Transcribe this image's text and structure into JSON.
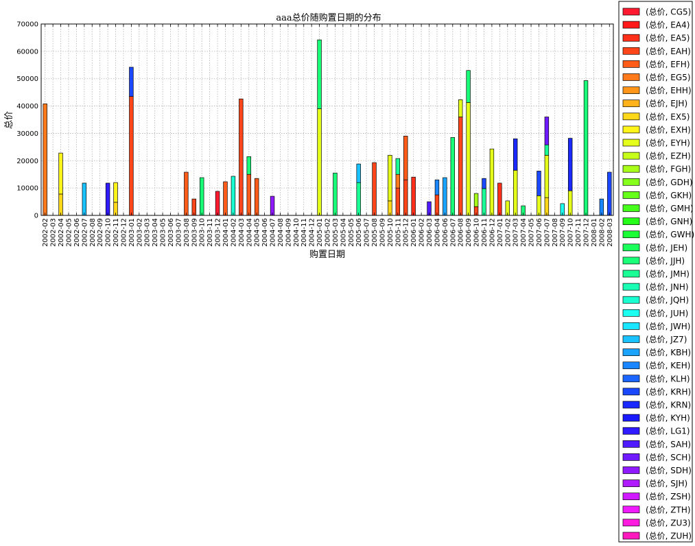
{
  "chart_data": {
    "type": "bar",
    "stacked": true,
    "title": "aaa总价随购置日期的分布",
    "xlabel": "购置日期",
    "ylabel": "总价",
    "ylim": [
      0,
      70000
    ],
    "yticks": [
      0,
      10000,
      20000,
      30000,
      40000,
      50000,
      60000,
      70000
    ],
    "grid": true,
    "legend_position": "right",
    "categories": [
      "2002-02",
      "2002-03",
      "2002-04",
      "2002-05",
      "2002-06",
      "2002-07",
      "2002-08",
      "2002-09",
      "2002-10",
      "2002-11",
      "2002-12",
      "2003-01",
      "2003-02",
      "2003-03",
      "2003-04",
      "2003-05",
      "2003-06",
      "2003-07",
      "2003-08",
      "2003-09",
      "2003-10",
      "2003-11",
      "2003-12",
      "2004-01",
      "2004-02",
      "2004-03",
      "2004-04",
      "2004-05",
      "2004-06",
      "2004-07",
      "2004-08",
      "2004-09",
      "2004-10",
      "2004-11",
      "2004-12",
      "2005-01",
      "2005-02",
      "2005-03",
      "2005-04",
      "2005-05",
      "2005-06",
      "2005-07",
      "2005-08",
      "2005-09",
      "2005-10",
      "2005-11",
      "2005-12",
      "2006-01",
      "2006-02",
      "2006-03",
      "2006-04",
      "2006-06",
      "2006-07",
      "2006-08",
      "2006-09",
      "2006-10",
      "2006-11",
      "2006-12",
      "2007-01",
      "2007-02",
      "2007-03",
      "2007-04",
      "2007-05",
      "2007-06",
      "2007-07",
      "2007-08",
      "2007-09",
      "2007-10",
      "2007-11",
      "2007-12",
      "2008-01",
      "2008-02",
      "2008-03"
    ],
    "legend": [
      {
        "label": "(总价, CG5)",
        "color": "#ff1a30"
      },
      {
        "label": "(总价, EA4)",
        "color": "#ff1a1a"
      },
      {
        "label": "(总价, EA5)",
        "color": "#ff2f1a"
      },
      {
        "label": "(总价, EAH)",
        "color": "#ff451a"
      },
      {
        "label": "(总价, EFH)",
        "color": "#ff5c1a"
      },
      {
        "label": "(总价, EG5)",
        "color": "#ff7a1a"
      },
      {
        "label": "(总价, EHH)",
        "color": "#ff961a"
      },
      {
        "label": "(总价, EJH)",
        "color": "#ffb31a"
      },
      {
        "label": "(总价, EX5)",
        "color": "#ffd81a"
      },
      {
        "label": "(总价, EXH)",
        "color": "#fff51a"
      },
      {
        "label": "(总价, EYH)",
        "color": "#e6ff1a"
      },
      {
        "label": "(总价, EZH)",
        "color": "#c8ff1a"
      },
      {
        "label": "(总价, FGH)",
        "color": "#a8ff1a"
      },
      {
        "label": "(总价, GDH)",
        "color": "#86ff1a"
      },
      {
        "label": "(总价, GKH)",
        "color": "#66ff1a"
      },
      {
        "label": "(总价, GMH)",
        "color": "#45ff1a"
      },
      {
        "label": "(总价, GNH)",
        "color": "#26ff1a"
      },
      {
        "label": "(总价, GWH)",
        "color": "#1aff36"
      },
      {
        "label": "(总价, JEH)",
        "color": "#1aff5a"
      },
      {
        "label": "(总价, JJH)",
        "color": "#1aff78"
      },
      {
        "label": "(总价, JMH)",
        "color": "#1aff96"
      },
      {
        "label": "(总价, JNH)",
        "color": "#1affb4"
      },
      {
        "label": "(总价, JQH)",
        "color": "#1affd2"
      },
      {
        "label": "(总价, JUH)",
        "color": "#1afff0"
      },
      {
        "label": "(总价, JWH)",
        "color": "#1ae6ff"
      },
      {
        "label": "(总价, JZ7)",
        "color": "#1ac3ff"
      },
      {
        "label": "(总价, KBH)",
        "color": "#1aa4ff"
      },
      {
        "label": "(总价, KEH)",
        "color": "#1a86ff"
      },
      {
        "label": "(总价, KLH)",
        "color": "#1a66ff"
      },
      {
        "label": "(总价, KRH)",
        "color": "#1a48ff"
      },
      {
        "label": "(总价, KRN)",
        "color": "#1a2aff"
      },
      {
        "label": "(总价, KYH)",
        "color": "#1a1aff"
      },
      {
        "label": "(总价, LG1)",
        "color": "#301aff"
      },
      {
        "label": "(总价, SAH)",
        "color": "#501aff"
      },
      {
        "label": "(总价, SCH)",
        "color": "#701aff"
      },
      {
        "label": "(总价, SDH)",
        "color": "#901aff"
      },
      {
        "label": "(总价, SJH)",
        "color": "#b01aff"
      },
      {
        "label": "(总价, ZSH)",
        "color": "#d01aff"
      },
      {
        "label": "(总价, ZTH)",
        "color": "#f01aff"
      },
      {
        "label": "(总价, ZU3)",
        "color": "#ff1ae0"
      },
      {
        "label": "(总价, ZUH)",
        "color": "#ff1ac0"
      }
    ],
    "bars": [
      {
        "date": "2002-02",
        "segments": [
          {
            "value": 40800,
            "color": "#ff7a1a"
          }
        ]
      },
      {
        "date": "2002-04",
        "segments": [
          {
            "value": 7800,
            "color": "#ffd81a"
          },
          {
            "value": 15000,
            "color": "#fff51a"
          }
        ]
      },
      {
        "date": "2002-07",
        "segments": [
          {
            "value": 11800,
            "color": "#1ac3ff"
          }
        ]
      },
      {
        "date": "2002-10",
        "segments": [
          {
            "value": 11800,
            "color": "#301aff"
          }
        ]
      },
      {
        "date": "2002-11",
        "segments": [
          {
            "value": 4800,
            "color": "#ffd81a"
          },
          {
            "value": 7200,
            "color": "#fff51a"
          }
        ]
      },
      {
        "date": "2003-01",
        "segments": [
          {
            "value": 43500,
            "color": "#ff451a"
          },
          {
            "value": 10700,
            "color": "#1a48ff"
          }
        ]
      },
      {
        "date": "2003-08",
        "segments": [
          {
            "value": 15800,
            "color": "#ff5c1a"
          }
        ]
      },
      {
        "date": "2003-09",
        "segments": [
          {
            "value": 6000,
            "color": "#ff451a"
          }
        ]
      },
      {
        "date": "2003-10",
        "segments": [
          {
            "value": 13800,
            "color": "#1aff78"
          }
        ]
      },
      {
        "date": "2003-12",
        "segments": [
          {
            "value": 8800,
            "color": "#ff1a30"
          }
        ]
      },
      {
        "date": "2004-01",
        "segments": [
          {
            "value": 12300,
            "color": "#ff5c1a"
          }
        ]
      },
      {
        "date": "2004-02",
        "segments": [
          {
            "value": 14300,
            "color": "#1affd2"
          }
        ]
      },
      {
        "date": "2004-03",
        "segments": [
          {
            "value": 42600,
            "color": "#ff451a"
          }
        ]
      },
      {
        "date": "2004-04",
        "segments": [
          {
            "value": 15000,
            "color": "#ff5c1a"
          },
          {
            "value": 6500,
            "color": "#1aff78"
          }
        ]
      },
      {
        "date": "2004-05",
        "segments": [
          {
            "value": 13500,
            "color": "#ff5c1a"
          }
        ]
      },
      {
        "date": "2004-07",
        "segments": [
          {
            "value": 7000,
            "color": "#901aff"
          }
        ]
      },
      {
        "date": "2005-01",
        "segments": [
          {
            "value": 39000,
            "color": "#e6ff1a"
          },
          {
            "value": 25200,
            "color": "#1aff78"
          }
        ]
      },
      {
        "date": "2005-03",
        "segments": [
          {
            "value": 15500,
            "color": "#1aff78"
          }
        ]
      },
      {
        "date": "2005-06",
        "segments": [
          {
            "value": 12000,
            "color": "#1aff96"
          },
          {
            "value": 6800,
            "color": "#1ac3ff"
          }
        ]
      },
      {
        "date": "2005-08",
        "segments": [
          {
            "value": 19300,
            "color": "#ff451a"
          }
        ]
      },
      {
        "date": "2005-10",
        "segments": [
          {
            "value": 5300,
            "color": "#ffd81a"
          },
          {
            "value": 16700,
            "color": "#e6ff1a"
          }
        ]
      },
      {
        "date": "2005-11",
        "segments": [
          {
            "value": 10000,
            "color": "#ff451a"
          },
          {
            "value": 5000,
            "color": "#ff7a1a"
          },
          {
            "value": 5800,
            "color": "#1aff96"
          }
        ]
      },
      {
        "date": "2005-12",
        "segments": [
          {
            "value": 13000,
            "color": "#ff451a"
          },
          {
            "value": 16000,
            "color": "#ff5c1a"
          }
        ]
      },
      {
        "date": "2006-01",
        "segments": [
          {
            "value": 14000,
            "color": "#ff2f1a"
          }
        ]
      },
      {
        "date": "2006-03",
        "segments": [
          {
            "value": 5000,
            "color": "#501aff"
          }
        ]
      },
      {
        "date": "2006-04",
        "segments": [
          {
            "value": 7500,
            "color": "#ff451a"
          },
          {
            "value": 5500,
            "color": "#1a86ff"
          }
        ]
      },
      {
        "date": "2006-06",
        "segments": [
          {
            "value": 13800,
            "color": "#1aa4ff"
          }
        ]
      },
      {
        "date": "2006-07",
        "segments": [
          {
            "value": 28500,
            "color": "#1aff78"
          }
        ]
      },
      {
        "date": "2006-08",
        "segments": [
          {
            "value": 36000,
            "color": "#ff451a"
          },
          {
            "value": 6300,
            "color": "#e6ff1a"
          }
        ]
      },
      {
        "date": "2006-09",
        "segments": [
          {
            "value": 41300,
            "color": "#e6ff1a"
          },
          {
            "value": 11700,
            "color": "#1aff78"
          }
        ]
      },
      {
        "date": "2006-10",
        "segments": [
          {
            "value": 3200,
            "color": "#ff451a"
          },
          {
            "value": 4800,
            "color": "#a8ff1a"
          }
        ]
      },
      {
        "date": "2006-11",
        "segments": [
          {
            "value": 9800,
            "color": "#1aff96"
          },
          {
            "value": 3700,
            "color": "#1a48ff"
          }
        ]
      },
      {
        "date": "2006-12",
        "segments": [
          {
            "value": 24300,
            "color": "#e6ff1a"
          }
        ]
      },
      {
        "date": "2007-01",
        "segments": [
          {
            "value": 11800,
            "color": "#ff2f1a"
          }
        ]
      },
      {
        "date": "2007-02",
        "segments": [
          {
            "value": 5300,
            "color": "#e6ff1a"
          }
        ]
      },
      {
        "date": "2007-03",
        "segments": [
          {
            "value": 16500,
            "color": "#e6ff1a"
          },
          {
            "value": 11500,
            "color": "#1a2aff"
          }
        ]
      },
      {
        "date": "2007-04",
        "segments": [
          {
            "value": 3500,
            "color": "#1aff78"
          }
        ]
      },
      {
        "date": "2007-06",
        "segments": [
          {
            "value": 7200,
            "color": "#e6ff1a"
          },
          {
            "value": 9000,
            "color": "#1a48ff"
          }
        ]
      },
      {
        "date": "2007-07",
        "segments": [
          {
            "value": 6500,
            "color": "#ffd81a"
          },
          {
            "value": 15500,
            "color": "#e6ff1a"
          },
          {
            "value": 3800,
            "color": "#1aff96"
          },
          {
            "value": 10200,
            "color": "#701aff"
          }
        ]
      },
      {
        "date": "2007-09",
        "segments": [
          {
            "value": 4300,
            "color": "#1afff0"
          }
        ]
      },
      {
        "date": "2007-10",
        "segments": [
          {
            "value": 9000,
            "color": "#e6ff1a"
          },
          {
            "value": 19200,
            "color": "#1a2aff"
          }
        ]
      },
      {
        "date": "2007-12",
        "segments": [
          {
            "value": 49300,
            "color": "#1aff78"
          }
        ]
      },
      {
        "date": "2008-02",
        "segments": [
          {
            "value": 6000,
            "color": "#1a86ff"
          }
        ]
      },
      {
        "date": "2008-03",
        "segments": [
          {
            "value": 15800,
            "color": "#1a48ff"
          }
        ]
      }
    ]
  }
}
